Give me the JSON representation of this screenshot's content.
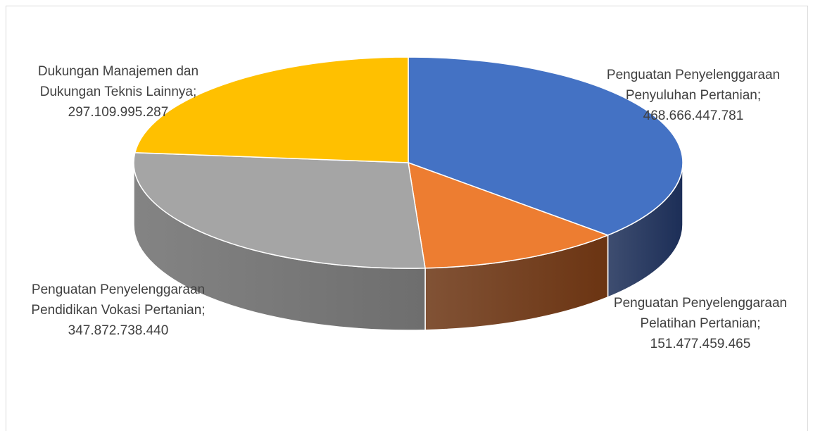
{
  "chart_data": {
    "type": "pie",
    "title": "",
    "style": "3d-tilted",
    "start_angle_deg": 0,
    "direction": "clockwise",
    "slices": [
      {
        "name": "Penguatan Penyelenggaraan Penyuluhan Pertanian",
        "value": 468666447781,
        "label_lines": [
          "Penguatan Penyelenggaraan",
          "Penyuluhan Pertanian;",
          "468.666.447.781"
        ],
        "color": "#4472c4",
        "side_color": "#1c2e57"
      },
      {
        "name": "Penguatan Penyelenggaraan Pelatihan Pertanian",
        "value": 151477459465,
        "label_lines": [
          "Penguatan Penyelenggaraan",
          "Pelatihan Pertanian;",
          "151.477.459.465"
        ],
        "color": "#ed7d31",
        "side_color": "#6b3412"
      },
      {
        "name": "Penguatan Penyelenggaraan Pendidikan Vokasi Pertanian",
        "value": 347872738440,
        "label_lines": [
          "Penguatan Penyelenggaraan",
          "Pendidikan Vokasi Pertanian;",
          "347.872.738.440"
        ],
        "color": "#a5a5a5",
        "side_color": "#6e6e6e"
      },
      {
        "name": "Dukungan Manajemen dan Dukungan Teknis Lainnya",
        "value": 297109995287,
        "label_lines": [
          "Dukungan Manajemen dan",
          "Dukungan Teknis Lainnya;",
          "297.109.995.287"
        ],
        "color": "#ffc000",
        "side_color": "#8a6800"
      }
    ]
  }
}
